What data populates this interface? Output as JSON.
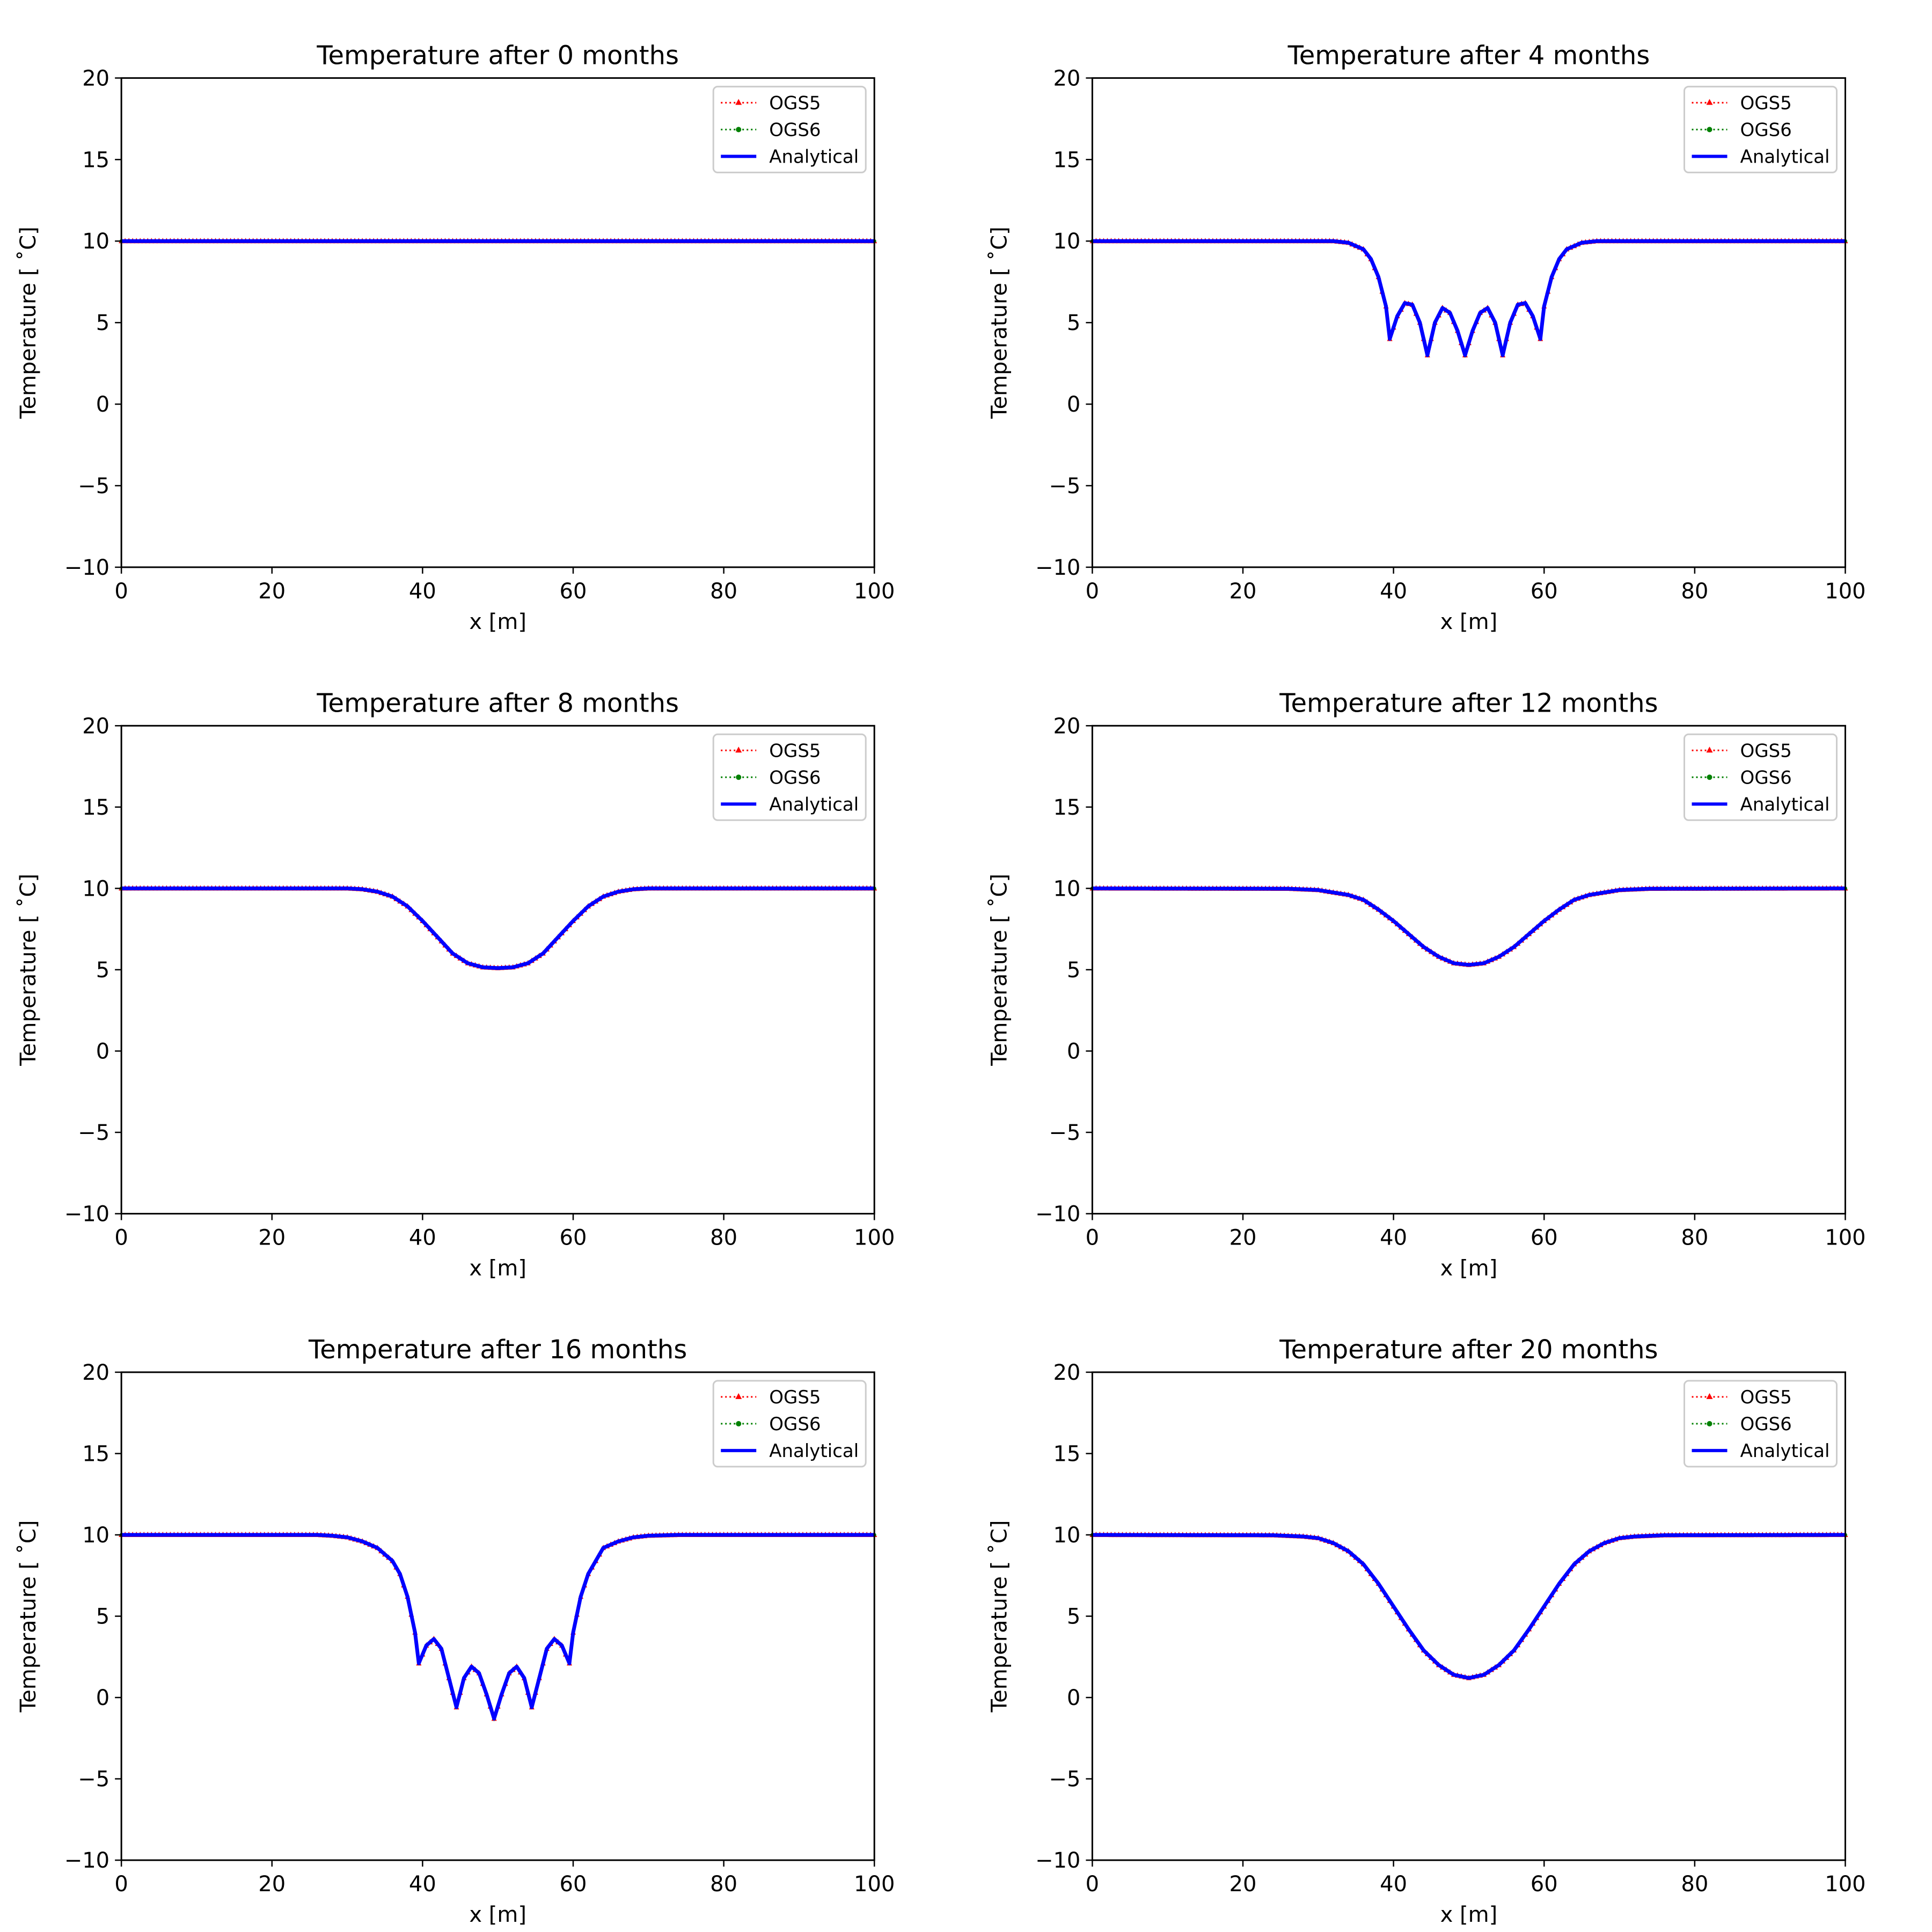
{
  "figure": {
    "legend": {
      "entries": [
        {
          "label": "OGS5",
          "color": "#ff0000",
          "marker": "triangle-up",
          "linestyle": "dotted"
        },
        {
          "label": "OGS6",
          "color": "#008000",
          "marker": "circle",
          "linestyle": "dotted"
        },
        {
          "label": "Analytical",
          "color": "#0000ff",
          "marker": "none",
          "linestyle": "solid"
        }
      ]
    },
    "xlabel": "x [m]",
    "ylabel": "Temperature [$^\\circ$C]",
    "ylabel_display": "Temperature [ ˚C]",
    "xticks": [
      0,
      20,
      40,
      60,
      80,
      100
    ],
    "yticks": [
      -10,
      -5,
      0,
      5,
      10,
      15,
      20
    ],
    "ytick_labels": [
      "−10",
      "−5",
      "0",
      "5",
      "10",
      "15",
      "20"
    ]
  },
  "chart_data": [
    {
      "type": "line",
      "title": "Temperature after 0 months",
      "xlabel": "x [m]",
      "ylabel": "Temperature [˚C]",
      "xlim": [
        0,
        100
      ],
      "ylim": [
        -10,
        20
      ],
      "grid": false,
      "legend_position": "upper right",
      "x": [
        0,
        100
      ],
      "series": [
        {
          "name": "OGS5",
          "values": [
            10,
            10
          ]
        },
        {
          "name": "OGS6",
          "values": [
            10,
            10
          ]
        },
        {
          "name": "Analytical",
          "values": [
            10,
            10
          ]
        }
      ]
    },
    {
      "type": "line",
      "title": "Temperature after 4 months",
      "xlabel": "x [m]",
      "ylabel": "Temperature [˚C]",
      "xlim": [
        0,
        100
      ],
      "ylim": [
        -10,
        20
      ],
      "grid": false,
      "legend_position": "upper right",
      "x": [
        0,
        32,
        34,
        36,
        37,
        38,
        39,
        39.5,
        40.5,
        41.5,
        42.5,
        43.5,
        44.5,
        45.5,
        46.5,
        47.5,
        48.5,
        49.5,
        50.5,
        51.5,
        52.5,
        53.5,
        54.5,
        55.5,
        56.5,
        57.5,
        58.5,
        59.5,
        60,
        61,
        62,
        63,
        65,
        67,
        100
      ],
      "series": [
        {
          "name": "OGS5",
          "values": [
            10,
            10,
            9.9,
            9.5,
            8.9,
            7.8,
            6.0,
            4.0,
            5.4,
            6.2,
            6.1,
            5.0,
            3.0,
            5.0,
            5.9,
            5.6,
            4.5,
            3.0,
            4.5,
            5.6,
            5.9,
            5.0,
            3.0,
            5.0,
            6.1,
            6.2,
            5.4,
            4.0,
            6.0,
            7.8,
            8.9,
            9.5,
            9.9,
            10,
            10
          ]
        },
        {
          "name": "OGS6",
          "values": [
            10,
            10,
            9.9,
            9.5,
            8.9,
            7.8,
            6.0,
            4.0,
            5.4,
            6.2,
            6.1,
            5.0,
            3.0,
            5.0,
            5.9,
            5.6,
            4.5,
            3.0,
            4.5,
            5.6,
            5.9,
            5.0,
            3.0,
            5.0,
            6.1,
            6.2,
            5.4,
            4.0,
            6.0,
            7.8,
            8.9,
            9.5,
            9.9,
            10,
            10
          ]
        },
        {
          "name": "Analytical",
          "values": [
            10,
            10,
            9.9,
            9.5,
            8.9,
            7.8,
            6.0,
            4.0,
            5.4,
            6.2,
            6.1,
            5.0,
            3.0,
            5.0,
            5.9,
            5.6,
            4.5,
            3.0,
            4.5,
            5.6,
            5.9,
            5.0,
            3.0,
            5.0,
            6.1,
            6.2,
            5.4,
            4.0,
            6.0,
            7.8,
            8.9,
            9.5,
            9.9,
            10,
            10
          ]
        }
      ]
    },
    {
      "type": "line",
      "title": "Temperature after 8 months",
      "xlabel": "x [m]",
      "ylabel": "Temperature [˚C]",
      "xlim": [
        0,
        100
      ],
      "ylim": [
        -10,
        20
      ],
      "grid": false,
      "legend_position": "upper right",
      "x": [
        0,
        30,
        32,
        34,
        36,
        38,
        40,
        42,
        44,
        46,
        48,
        50,
        52,
        54,
        56,
        58,
        60,
        62,
        64,
        66,
        68,
        70,
        100
      ],
      "series": [
        {
          "name": "OGS5",
          "values": [
            10,
            10,
            9.95,
            9.8,
            9.5,
            8.9,
            8.0,
            7.0,
            6.0,
            5.4,
            5.15,
            5.1,
            5.15,
            5.4,
            6.0,
            7.0,
            8.0,
            8.9,
            9.5,
            9.8,
            9.95,
            10,
            10
          ]
        },
        {
          "name": "OGS6",
          "values": [
            10,
            10,
            9.95,
            9.8,
            9.5,
            8.9,
            8.0,
            7.0,
            6.0,
            5.4,
            5.15,
            5.1,
            5.15,
            5.4,
            6.0,
            7.0,
            8.0,
            8.9,
            9.5,
            9.8,
            9.95,
            10,
            10
          ]
        },
        {
          "name": "Analytical",
          "values": [
            10,
            10,
            9.95,
            9.8,
            9.5,
            8.9,
            8.0,
            7.0,
            6.0,
            5.4,
            5.15,
            5.1,
            5.15,
            5.4,
            6.0,
            7.0,
            8.0,
            8.9,
            9.5,
            9.8,
            9.95,
            10,
            10
          ]
        }
      ]
    },
    {
      "type": "line",
      "title": "Temperature after 12 months",
      "xlabel": "x [m]",
      "ylabel": "Temperature [˚C]",
      "xlim": [
        0,
        100
      ],
      "ylim": [
        -10,
        20
      ],
      "grid": false,
      "legend_position": "upper right",
      "x": [
        0,
        26,
        30,
        34,
        36,
        38,
        40,
        42,
        44,
        46,
        48,
        50,
        52,
        54,
        56,
        58,
        60,
        62,
        64,
        66,
        70,
        74,
        100
      ],
      "series": [
        {
          "name": "OGS5",
          "values": [
            10,
            9.98,
            9.9,
            9.6,
            9.3,
            8.7,
            8.0,
            7.2,
            6.4,
            5.8,
            5.4,
            5.3,
            5.4,
            5.8,
            6.4,
            7.2,
            8.0,
            8.7,
            9.3,
            9.6,
            9.9,
            9.98,
            10
          ]
        },
        {
          "name": "OGS6",
          "values": [
            10,
            9.98,
            9.9,
            9.6,
            9.3,
            8.7,
            8.0,
            7.2,
            6.4,
            5.8,
            5.4,
            5.3,
            5.4,
            5.8,
            6.4,
            7.2,
            8.0,
            8.7,
            9.3,
            9.6,
            9.9,
            9.98,
            10
          ]
        },
        {
          "name": "Analytical",
          "values": [
            10,
            9.98,
            9.9,
            9.6,
            9.3,
            8.7,
            8.0,
            7.2,
            6.4,
            5.8,
            5.4,
            5.3,
            5.4,
            5.8,
            6.4,
            7.2,
            8.0,
            8.7,
            9.3,
            9.6,
            9.9,
            9.98,
            10
          ]
        }
      ]
    },
    {
      "type": "line",
      "title": "Temperature after 16 months",
      "xlabel": "x [m]",
      "ylabel": "Temperature [˚C]",
      "xlim": [
        0,
        100
      ],
      "ylim": [
        -10,
        20
      ],
      "grid": false,
      "legend_position": "upper right",
      "x": [
        0,
        26,
        28,
        30,
        32,
        34,
        36,
        37,
        38,
        39,
        39.5,
        40.5,
        41.5,
        42.5,
        43.5,
        44.5,
        45.5,
        46.5,
        47.5,
        48.5,
        49.5,
        50.5,
        51.5,
        52.5,
        53.5,
        54.5,
        55.5,
        56.5,
        57.5,
        58.5,
        59.5,
        60,
        61,
        62,
        63,
        64,
        66,
        68,
        70,
        74,
        100
      ],
      "series": [
        {
          "name": "OGS5",
          "values": [
            10,
            10,
            9.95,
            9.85,
            9.6,
            9.2,
            8.4,
            7.6,
            6.2,
            4.0,
            2.1,
            3.2,
            3.6,
            3.0,
            1.2,
            -0.6,
            1.2,
            1.9,
            1.5,
            0.2,
            -1.3,
            0.2,
            1.5,
            1.9,
            1.2,
            -0.6,
            1.2,
            3.0,
            3.6,
            3.2,
            2.1,
            4.0,
            6.2,
            7.6,
            8.4,
            9.2,
            9.6,
            9.85,
            9.95,
            10,
            10
          ]
        },
        {
          "name": "OGS6",
          "values": [
            10,
            10,
            9.95,
            9.85,
            9.6,
            9.2,
            8.4,
            7.6,
            6.2,
            4.0,
            2.1,
            3.2,
            3.6,
            3.0,
            1.2,
            -0.6,
            1.2,
            1.9,
            1.5,
            0.2,
            -1.3,
            0.2,
            1.5,
            1.9,
            1.2,
            -0.6,
            1.2,
            3.0,
            3.6,
            3.2,
            2.1,
            4.0,
            6.2,
            7.6,
            8.4,
            9.2,
            9.6,
            9.85,
            9.95,
            10,
            10
          ]
        },
        {
          "name": "Analytical",
          "values": [
            10,
            10,
            9.95,
            9.85,
            9.6,
            9.2,
            8.4,
            7.6,
            6.2,
            4.0,
            2.1,
            3.2,
            3.6,
            3.0,
            1.2,
            -0.6,
            1.2,
            1.9,
            1.5,
            0.2,
            -1.3,
            0.2,
            1.5,
            1.9,
            1.2,
            -0.6,
            1.2,
            3.0,
            3.6,
            3.2,
            2.1,
            4.0,
            6.2,
            7.6,
            8.4,
            9.2,
            9.6,
            9.85,
            9.95,
            10,
            10
          ]
        }
      ]
    },
    {
      "type": "line",
      "title": "Temperature after 20 months",
      "xlabel": "x [m]",
      "ylabel": "Temperature [˚C]",
      "xlim": [
        0,
        100
      ],
      "ylim": [
        -10,
        20
      ],
      "grid": false,
      "legend_position": "upper right",
      "x": [
        0,
        24,
        28,
        30,
        32,
        34,
        36,
        38,
        40,
        42,
        44,
        46,
        48,
        50,
        52,
        54,
        56,
        58,
        60,
        62,
        64,
        66,
        68,
        70,
        72,
        76,
        100
      ],
      "series": [
        {
          "name": "OGS5",
          "values": [
            10,
            9.98,
            9.9,
            9.8,
            9.5,
            9.0,
            8.2,
            7.0,
            5.6,
            4.2,
            2.9,
            2.0,
            1.4,
            1.2,
            1.4,
            2.0,
            2.9,
            4.2,
            5.6,
            7.0,
            8.2,
            9.0,
            9.5,
            9.8,
            9.9,
            9.98,
            10
          ]
        },
        {
          "name": "OGS6",
          "values": [
            10,
            9.98,
            9.9,
            9.8,
            9.5,
            9.0,
            8.2,
            7.0,
            5.6,
            4.2,
            2.9,
            2.0,
            1.4,
            1.2,
            1.4,
            2.0,
            2.9,
            4.2,
            5.6,
            7.0,
            8.2,
            9.0,
            9.5,
            9.8,
            9.9,
            9.98,
            10
          ]
        },
        {
          "name": "Analytical",
          "values": [
            10,
            9.98,
            9.9,
            9.8,
            9.5,
            9.0,
            8.2,
            7.0,
            5.6,
            4.2,
            2.9,
            2.0,
            1.4,
            1.2,
            1.4,
            2.0,
            2.9,
            4.2,
            5.6,
            7.0,
            8.2,
            9.0,
            9.5,
            9.8,
            9.9,
            9.98,
            10
          ]
        }
      ]
    }
  ]
}
